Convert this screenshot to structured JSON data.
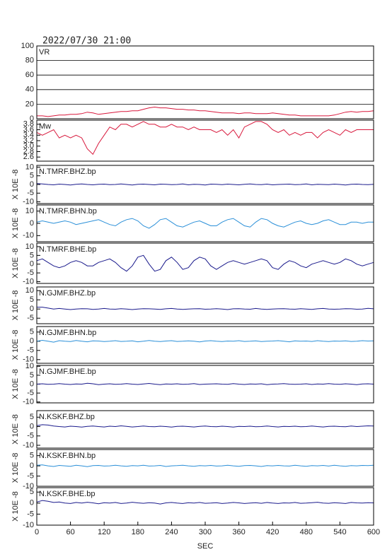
{
  "chart_data": {
    "type": "line",
    "title": "2022/07/30 21:00",
    "xlabel": "SEC",
    "xlim": [
      0,
      600
    ],
    "xticks": [
      0,
      60,
      120,
      180,
      240,
      300,
      360,
      420,
      480,
      540,
      600
    ],
    "x": [
      0,
      10,
      20,
      30,
      40,
      50,
      60,
      70,
      80,
      90,
      100,
      110,
      120,
      130,
      140,
      150,
      160,
      170,
      180,
      190,
      200,
      210,
      220,
      230,
      240,
      250,
      260,
      270,
      280,
      290,
      300,
      310,
      320,
      330,
      340,
      350,
      360,
      370,
      380,
      390,
      400,
      410,
      420,
      430,
      440,
      450,
      460,
      470,
      480,
      490,
      500,
      510,
      520,
      530,
      540,
      550,
      560,
      570,
      580,
      590,
      600
    ],
    "panels": [
      {
        "label": "VR",
        "color": "#d8183c",
        "grid": true,
        "ylim": [
          0,
          100
        ],
        "yticks": [
          0,
          20,
          40,
          60,
          80,
          100
        ],
        "values": [
          4,
          4,
          3,
          4,
          5,
          5,
          6,
          6,
          7,
          9,
          8,
          6,
          7,
          8,
          9,
          10,
          10,
          11,
          11,
          13,
          15,
          16,
          15,
          15,
          14,
          13,
          13,
          12,
          12,
          11,
          11,
          10,
          9,
          8,
          8,
          8,
          7,
          8,
          8,
          7,
          7,
          7,
          8,
          7,
          6,
          5,
          5,
          4,
          4,
          4,
          4,
          4,
          4,
          5,
          7,
          9,
          10,
          9,
          10,
          10,
          11
        ]
      },
      {
        "label": "Mw",
        "color": "#d8183c",
        "grid": false,
        "ylim": [
          2.45,
          3.95
        ],
        "yticks": [
          2.6,
          2.8,
          {
            "value": 3,
            "label": "3.0"
          },
          3.2,
          3.4,
          3.6,
          3.8
        ],
        "values": [
          3.5,
          3.4,
          3.5,
          3.6,
          3.3,
          3.4,
          3.3,
          3.4,
          3.3,
          2.9,
          2.7,
          3.1,
          3.4,
          3.7,
          3.6,
          3.8,
          3.8,
          3.7,
          3.8,
          3.9,
          3.8,
          3.8,
          3.7,
          3.7,
          3.8,
          3.7,
          3.7,
          3.6,
          3.7,
          3.6,
          3.6,
          3.6,
          3.5,
          3.6,
          3.4,
          3.6,
          3.3,
          3.7,
          3.8,
          3.9,
          3.9,
          3.8,
          3.6,
          3.5,
          3.6,
          3.4,
          3.5,
          3.4,
          3.5,
          3.5,
          3.3,
          3.5,
          3.6,
          3.5,
          3.4,
          3.6,
          3.5,
          3.6,
          3.6,
          3.6,
          3.6
        ]
      },
      {
        "label": "N.TMRF.BHZ.bp",
        "ylabel": "X 10E -8",
        "color": "#1a1a8c",
        "grid": false,
        "ylim": [
          -11,
          11
        ],
        "yticks": [
          -10,
          -5,
          0,
          5,
          10
        ],
        "values": [
          0.5,
          0.3,
          0,
          -0.2,
          0.2,
          0,
          -0.3,
          0.1,
          0.3,
          0,
          -0.2,
          0.1,
          0.2,
          -0.1,
          0,
          0.3,
          0,
          -0.3,
          0.1,
          0.2,
          0,
          -0.2,
          0.2,
          0.1,
          -0.1,
          0,
          0.3,
          -0.2,
          0.1,
          0,
          -0.3,
          0.2,
          0.1,
          -0.1,
          0.2,
          0,
          -0.2,
          0.1,
          0.3,
          0,
          -0.1,
          0.2,
          -0.2,
          0,
          0.1,
          0.2,
          -0.1,
          0,
          0.3,
          -0.2,
          0.1,
          0,
          -0.1,
          0.2,
          0,
          -0.3,
          0.1,
          0.2,
          0,
          -0.1,
          0.1
        ]
      },
      {
        "label": "N.TMRF.BHN.bp",
        "ylabel": "X 10E -8",
        "color": "#2a8fd8",
        "grid": false,
        "ylim": [
          -15,
          15
        ],
        "yticks": [
          -10,
          0,
          10
        ],
        "values": [
          1,
          2,
          1,
          0,
          1,
          2,
          1,
          -1,
          0,
          1,
          2,
          3,
          1,
          -1,
          -2,
          1,
          3,
          4,
          2,
          -2,
          -4,
          -1,
          3,
          4,
          1,
          -2,
          -3,
          -1,
          1,
          2,
          0,
          -2,
          -2,
          1,
          3,
          4,
          1,
          -2,
          -3,
          1,
          4,
          3,
          0,
          -2,
          -3,
          -1,
          1,
          2,
          0,
          -1,
          0,
          2,
          3,
          1,
          -1,
          -1,
          1,
          1,
          0,
          1,
          1
        ]
      },
      {
        "label": "N.TMRF.BHE.bp",
        "ylabel": "X 10E -8",
        "color": "#1a1a8c",
        "grid": false,
        "ylim": [
          -11,
          12
        ],
        "yticks": [
          -10,
          -5,
          0,
          5,
          10
        ],
        "values": [
          2,
          3,
          1,
          -1,
          -2,
          -1,
          1,
          2,
          1,
          -1,
          -1,
          1,
          2,
          3,
          1,
          -2,
          -4,
          -1,
          4,
          5,
          0,
          -4,
          -3,
          2,
          4,
          1,
          -3,
          -2,
          2,
          4,
          3,
          -1,
          -3,
          -1,
          1,
          2,
          1,
          0,
          1,
          2,
          3,
          2,
          -2,
          -3,
          0,
          2,
          1,
          -1,
          -2,
          0,
          1,
          2,
          1,
          0,
          1,
          3,
          2,
          0,
          -1,
          0,
          1
        ]
      },
      {
        "label": "N.GJMF.BHZ.bp",
        "ylabel": "X 10E -8",
        "color": "#1a1a8c",
        "grid": false,
        "ylim": [
          -8,
          12
        ],
        "yticks": [
          -5,
          0,
          5,
          10
        ],
        "values": [
          1,
          1,
          0.5,
          0,
          0.3,
          0,
          -0.3,
          0,
          0.2,
          0.1,
          -0.2,
          0,
          0.3,
          0,
          -0.1,
          0.2,
          0,
          -0.3,
          0,
          0.2,
          0.1,
          0,
          -0.2,
          0.1,
          0.3,
          0,
          -0.2,
          0,
          0.1,
          0.2,
          -0.1,
          0,
          0.2,
          0,
          -0.3,
          0.1,
          0.2,
          0,
          -0.1,
          0.3,
          0,
          -0.2,
          0,
          0.1,
          0.2,
          0,
          -0.1,
          0.2,
          0,
          -0.2,
          0.1,
          0.3,
          0,
          -0.1,
          0,
          0.2,
          0.1,
          -0.1,
          0,
          0.4,
          0.1
        ]
      },
      {
        "label": "N.GJMF.BHN.bp",
        "ylabel": "X 10E -8",
        "color": "#2a8fd8",
        "grid": false,
        "ylim": [
          -12,
          8
        ],
        "yticks": [
          -10,
          -5,
          0,
          5
        ],
        "values": [
          0,
          0.5,
          0,
          -0.5,
          0.3,
          0,
          -0.2,
          0.4,
          0,
          -0.3,
          0.2,
          0.1,
          -0.2,
          0,
          0.3,
          -0.1,
          0,
          0.2,
          -0.3,
          0,
          0.4,
          0,
          -0.2,
          0.1,
          0.3,
          -0.1,
          0,
          0.2,
          0,
          -0.4,
          0.1,
          0.3,
          0,
          -0.2,
          0.1,
          0,
          0.3,
          -0.1,
          0,
          0.2,
          -0.2,
          0,
          0.1,
          0.3,
          0,
          -0.3,
          0.2,
          0,
          0.1,
          -0.1,
          0.3,
          0,
          -0.2,
          0.1,
          0,
          0.2,
          -0.1,
          0,
          0.3,
          0.1,
          0.2
        ]
      },
      {
        "label": "N.GJMF.BHE.bp",
        "ylabel": "X 10E -8",
        "color": "#1a1a8c",
        "grid": false,
        "ylim": [
          -10.5,
          10.5
        ],
        "yticks": [
          -10,
          -5,
          0,
          5,
          10
        ],
        "values": [
          0,
          0.2,
          -0.1,
          0,
          0.3,
          0,
          -0.2,
          0.1,
          0,
          0.5,
          0.2,
          -0.3,
          0,
          0.2,
          -0.1,
          0,
          0.3,
          0,
          -0.2,
          0.1,
          0.4,
          0,
          -0.3,
          0.1,
          0,
          0.2,
          -0.1,
          0,
          0.3,
          -0.2,
          0,
          0.1,
          0.2,
          0,
          -0.1,
          0.3,
          0,
          -0.2,
          0.1,
          0,
          0.2,
          -0.3,
          0,
          0.1,
          0.3,
          0,
          -0.1,
          0,
          0.2,
          -0.2,
          0.1,
          0,
          0.3,
          0,
          -0.1,
          0.2,
          0,
          -0.3,
          0.1,
          0.2,
          0
        ]
      },
      {
        "label": "N.KSKF.BHZ.bp",
        "ylabel": "X 10E -8",
        "color": "#1a1a8c",
        "grid": false,
        "ylim": [
          -11.5,
          8.5
        ],
        "yticks": [
          -10,
          -5,
          0,
          5
        ],
        "values": [
          0.5,
          1,
          0.8,
          0.3,
          0,
          -0.2,
          0.2,
          0,
          -0.3,
          0.1,
          0.3,
          0,
          -0.2,
          0.2,
          0,
          0.4,
          0.1,
          -0.2,
          0,
          0.3,
          0,
          -0.1,
          0.2,
          0,
          -0.3,
          0.1,
          0.2,
          0,
          -0.2,
          0.1,
          0.3,
          0,
          -0.1,
          0.2,
          0,
          -0.3,
          0.1,
          0,
          0.2,
          -0.1,
          0,
          0.3,
          0,
          -0.2,
          0.1,
          0,
          0.2,
          -0.1,
          0,
          0.3,
          0,
          -0.2,
          0.1,
          0.2,
          0,
          -0.1,
          0.3,
          0,
          0.2,
          0.4,
          0.3
        ]
      },
      {
        "label": "N.KSKF.BHN.bp",
        "ylabel": "X 10E -8",
        "color": "#2a8fd8",
        "grid": false,
        "ylim": [
          -10,
          8
        ],
        "yticks": [
          -10,
          -5,
          0,
          5
        ],
        "values": [
          0.3,
          0.5,
          0,
          -0.3,
          0.2,
          0,
          -0.2,
          0.3,
          0,
          -0.4,
          0.1,
          0.2,
          -0.1,
          0,
          0.3,
          0,
          -0.2,
          0.1,
          0,
          0.3,
          -0.1,
          0,
          0.2,
          -0.3,
          0,
          0.1,
          0.3,
          0,
          -0.2,
          0.1,
          0,
          0.2,
          -0.1,
          0,
          0.3,
          0,
          -0.2,
          0.1,
          0.2,
          0,
          -0.3,
          0.1,
          0,
          0.2,
          0,
          -0.1,
          0.3,
          0,
          -0.2,
          0.1,
          0,
          0.2,
          -0.1,
          0.3,
          0,
          -0.2,
          0.1,
          0,
          0.2,
          0.1,
          0.3
        ]
      },
      {
        "label": "N.KSKF.BHE.bp",
        "ylabel": "X 10E -8",
        "color": "#1a1a8c",
        "grid": false,
        "ylim": [
          -10,
          7
        ],
        "yticks": [
          -10,
          -5,
          0,
          5
        ],
        "values": [
          0.5,
          1.2,
          0.8,
          0.3,
          0.5,
          0,
          -0.2,
          0.3,
          0,
          0.4,
          0.1,
          -0.3,
          0.2,
          0,
          0.3,
          -0.2,
          0,
          0.4,
          0.1,
          -0.1,
          0.2,
          0,
          -0.4,
          0.1,
          0.3,
          0,
          -0.2,
          0.2,
          0,
          0.3,
          -0.1,
          0,
          0.2,
          -0.2,
          0,
          0.3,
          0.1,
          -0.2,
          0,
          0.2,
          -0.1,
          0.3,
          0,
          -0.2,
          0.1,
          0,
          0.3,
          -0.1,
          0,
          0.2,
          0.4,
          0,
          -0.1,
          0.2,
          0,
          -0.2,
          0.3,
          0.1,
          0,
          0.2,
          0.1
        ]
      }
    ]
  }
}
